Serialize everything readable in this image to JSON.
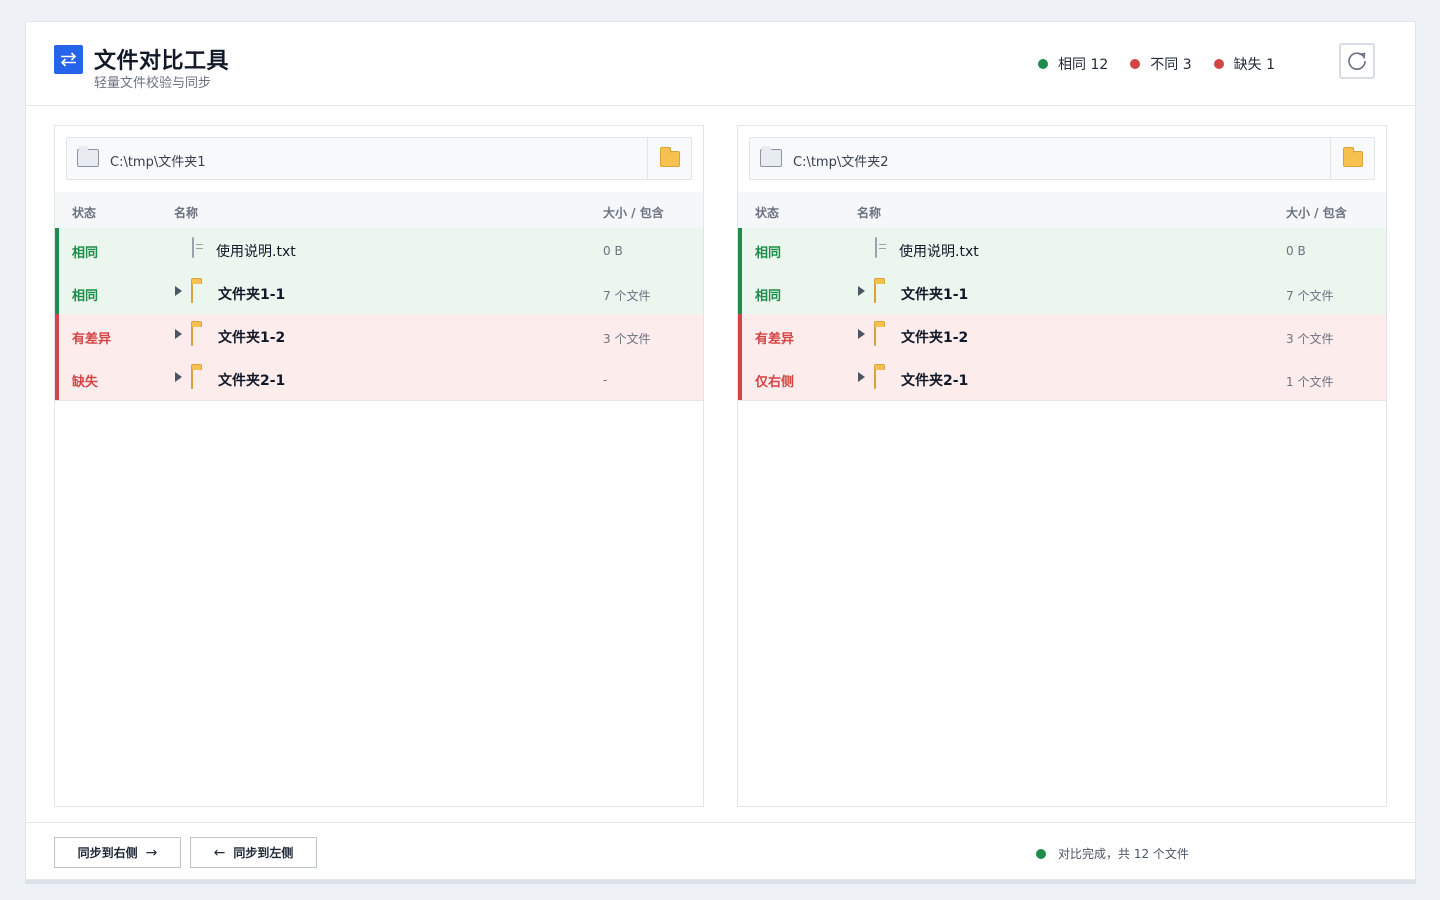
{
  "header": {
    "title": "文件对比工具",
    "subtitle": "轻量文件校验与同步",
    "stats": [
      {
        "label": "相同 12",
        "color": "#1e8c4a"
      },
      {
        "label": "不同 3",
        "color": "#d34545"
      },
      {
        "label": "缺失 1",
        "color": "#d34545"
      }
    ]
  },
  "columns": {
    "status": "状态",
    "name": "名称",
    "size": "大小 / 包含"
  },
  "left": {
    "path": "C:\\tmp\\文件夹1",
    "rows": [
      {
        "status": "相同",
        "name": "使用说明.txt",
        "size": "0 B"
      },
      {
        "status": "相同",
        "name": "文件夹1-1",
        "size": "7 个文件"
      },
      {
        "status": "有差异",
        "name": "文件夹1-2",
        "size": "3 个文件"
      },
      {
        "status": "缺失",
        "name": "文件夹2-1",
        "size": "-"
      }
    ]
  },
  "right": {
    "path": "C:\\tmp\\文件夹2",
    "rows": [
      {
        "status": "相同",
        "name": "使用说明.txt",
        "size": "0 B"
      },
      {
        "status": "相同",
        "name": "文件夹1-1",
        "size": "7 个文件"
      },
      {
        "status": "有差异",
        "name": "文件夹1-2",
        "size": "3 个文件"
      },
      {
        "status": "仅右侧",
        "name": "文件夹2-1",
        "size": "1 个文件"
      }
    ]
  },
  "footer": {
    "sync_right_label": "同步到右侧",
    "sync_right_arrow": "→",
    "sync_left_label": "同步到左侧",
    "sync_left_arrow": "←",
    "status_text": "对比完成，共 12 个文件",
    "status_color": "#1e8c4a"
  }
}
